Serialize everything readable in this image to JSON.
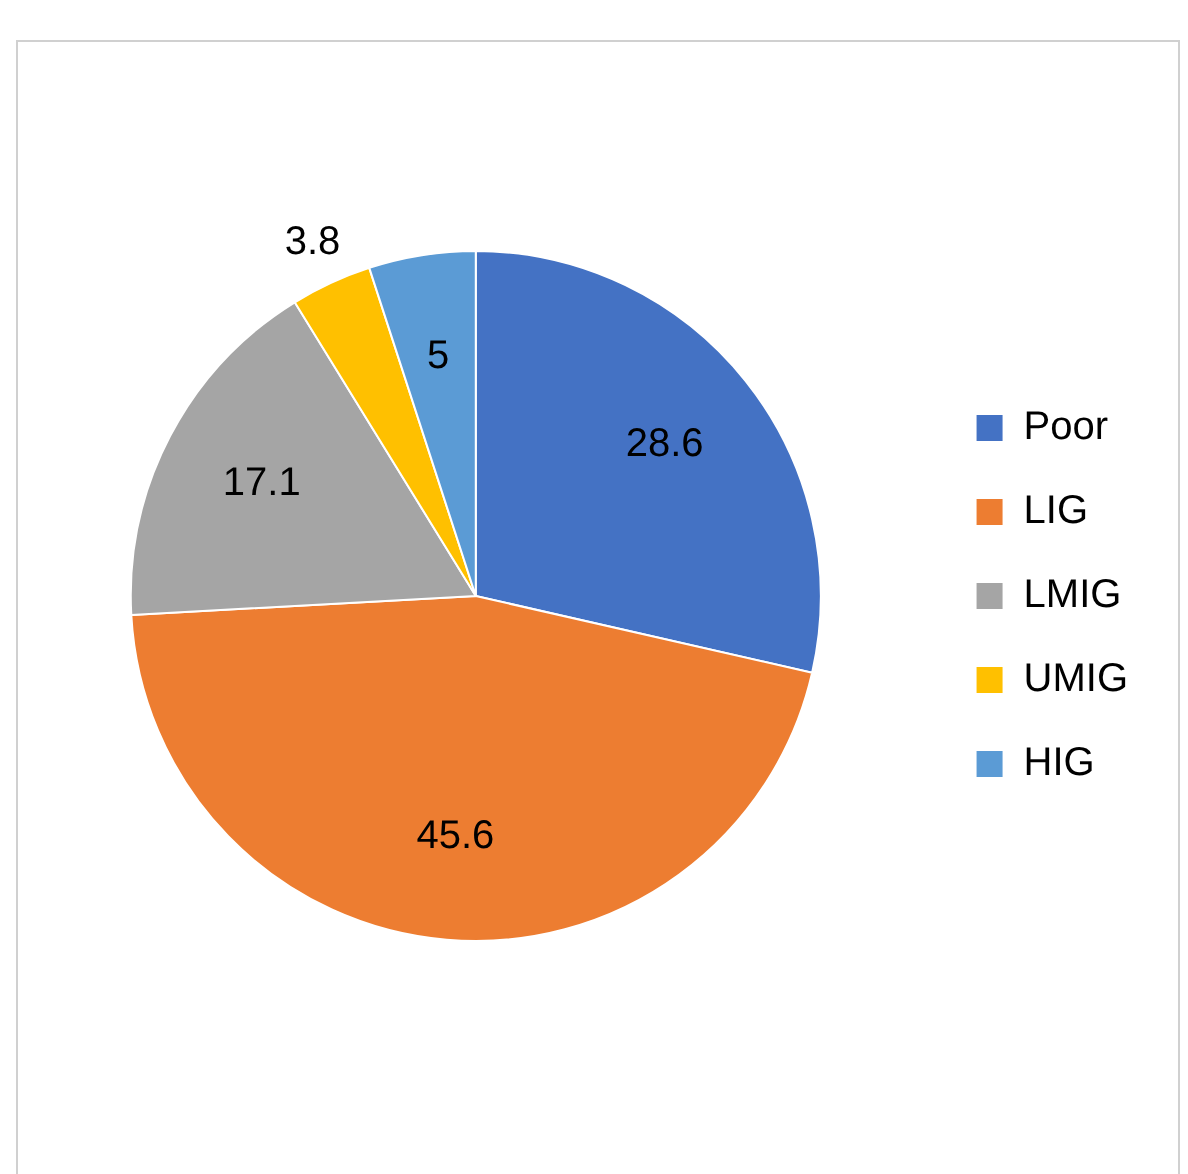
{
  "chart_data": {
    "type": "pie",
    "categories": [
      "Poor",
      "LIG",
      "LMIG",
      "UMIG",
      "HIG"
    ],
    "values": [
      28.6,
      45.6,
      17.1,
      3.8,
      5
    ],
    "colors": [
      "#4472c4",
      "#ed7d31",
      "#a5a5a5",
      "#ffc000",
      "#5b9bd5"
    ],
    "data_labels": true,
    "legend": "right"
  }
}
